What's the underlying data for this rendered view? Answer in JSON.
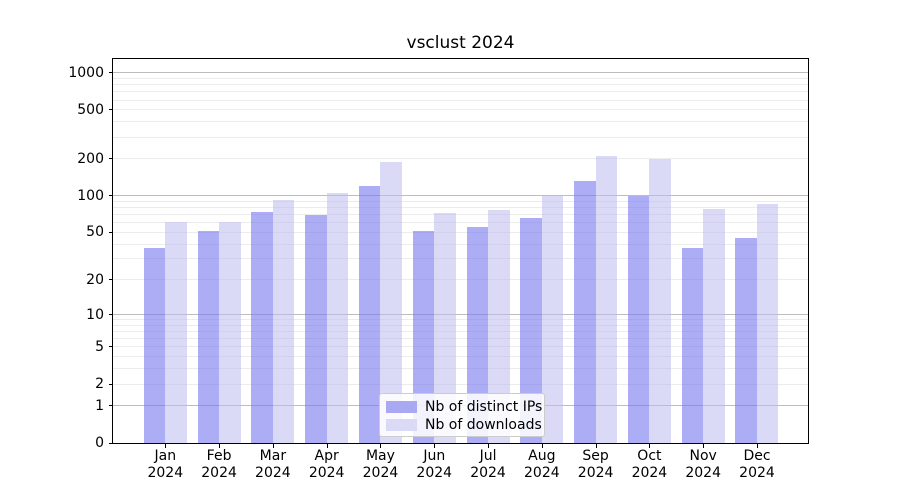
{
  "chart_data": {
    "type": "bar",
    "title": "vsclust 2024",
    "months": [
      "Jan",
      "Feb",
      "Mar",
      "Apr",
      "May",
      "Jun",
      "Jul",
      "Aug",
      "Sep",
      "Oct",
      "Nov",
      "Dec"
    ],
    "year": "2024",
    "series": [
      {
        "name": "Nb of distinct IPs",
        "color": "#7777ee",
        "fill": "rgba(119,119,238,0.6)",
        "swatch": "#a9a9f3",
        "values": [
          37,
          51,
          73,
          69,
          120,
          51,
          55,
          65,
          132,
          100,
          37,
          45
        ]
      },
      {
        "name": "Nb of downloads",
        "color": "#bbbbf0",
        "fill": "rgba(187,187,240,0.55)",
        "swatch": "#dadaf7",
        "values": [
          61,
          61,
          92,
          106,
          187,
          72,
          77,
          100,
          210,
          200,
          78,
          85
        ]
      }
    ],
    "y_scale": "log1p",
    "ylim": [
      0,
      1294
    ],
    "y_ticks": [
      0,
      1,
      2,
      5,
      10,
      20,
      50,
      100,
      200,
      500,
      1000
    ],
    "y_major_grid": [
      1,
      10,
      100,
      1000
    ],
    "y_minor_grid": [
      2,
      3,
      4,
      5,
      6,
      7,
      8,
      9,
      20,
      30,
      40,
      50,
      60,
      70,
      80,
      90,
      200,
      300,
      400,
      500,
      600,
      700,
      800,
      900
    ],
    "grid": true,
    "legend_position": "lower center",
    "axis_color": "#000000",
    "major_grid_color": "#bdbdbd",
    "minor_grid_color": "#ececec"
  }
}
